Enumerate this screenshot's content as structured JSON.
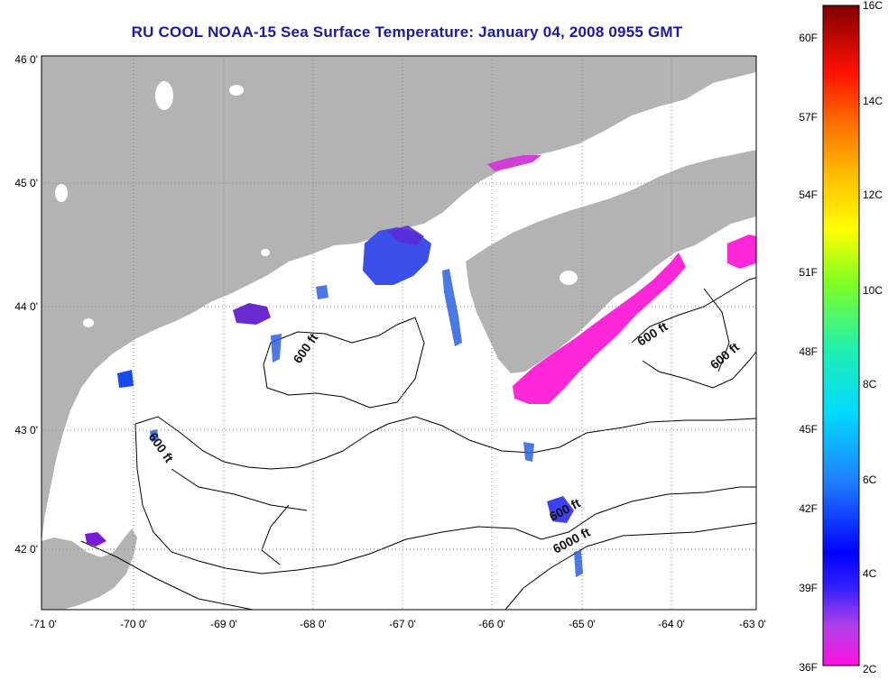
{
  "title": "RU COOL  NOAA-15  Sea Surface Temperature:  January 04, 2008 0955 GMT",
  "colors": {
    "land": "#b3b3b3",
    "ocean": "#ffffff",
    "title": "#1a1aa8"
  },
  "map": {
    "lon_ticks": [
      "-71 0'",
      "-70 0'",
      "-69 0'",
      "-68 0'",
      "-67 0'",
      "-66 0'",
      "-65 0'",
      "-64 0'",
      "-63 0'"
    ],
    "lat_ticks": [
      "46 0'",
      "45 0'",
      "44 0'",
      "43 0'",
      "42 0'"
    ],
    "contour_labels": [
      "600 ft",
      "600 ft",
      "600 ft",
      "600 ft",
      "600 ft",
      "6000 ft"
    ]
  },
  "colorbar": {
    "celsius_labels": [
      "16C",
      "14C",
      "12C",
      "10C",
      "8C",
      "6C",
      "4C",
      "2C"
    ],
    "fahrenheit_labels": [
      "60F",
      "57F",
      "54F",
      "51F",
      "48F",
      "45F",
      "42F",
      "39F",
      "36F"
    ]
  }
}
